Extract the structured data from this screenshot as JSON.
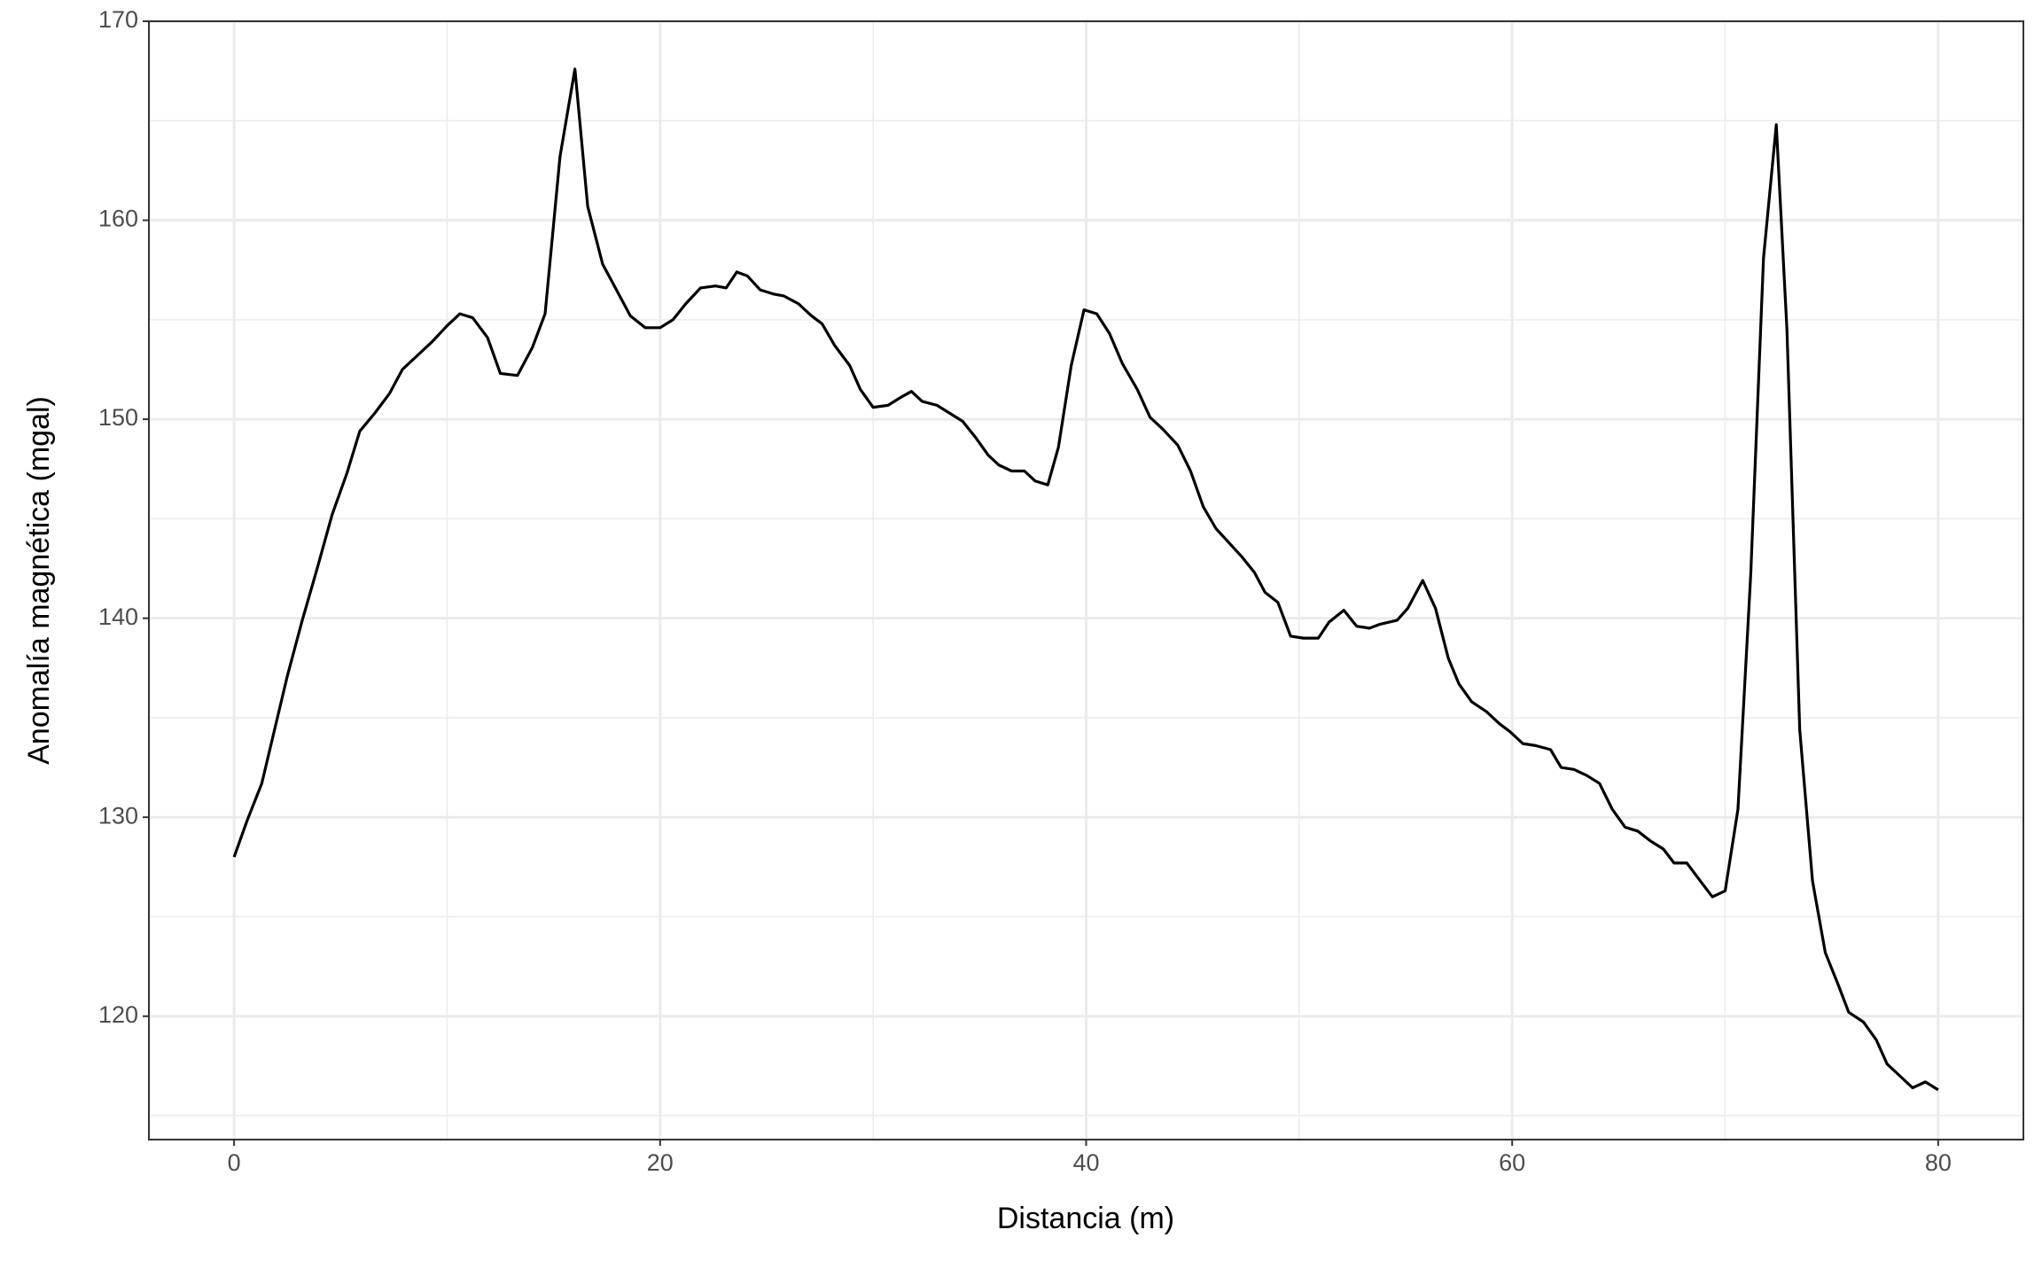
{
  "chart_data": {
    "type": "line",
    "x_label": "Distancia (m)",
    "y_label": "Anomalía magnética (mgal)",
    "x": [
      0,
      0.6,
      1.3,
      1.9,
      2.5,
      3.2,
      3.9,
      4.6,
      5.3,
      5.9,
      6.6,
      7.3,
      7.9,
      8.6,
      9.3,
      10.0,
      10.6,
      11.2,
      11.9,
      12.5,
      13.3,
      14.0,
      14.6,
      15.3,
      16.0,
      16.6,
      17.3,
      17.9,
      18.6,
      19.3,
      20.0,
      20.6,
      21.2,
      21.9,
      22.6,
      23.1,
      23.6,
      24.1,
      24.7,
      25.3,
      25.8,
      26.5,
      27.1,
      27.6,
      28.2,
      28.9,
      29.4,
      30.0,
      30.7,
      31.3,
      31.8,
      32.3,
      33.0,
      33.6,
      34.2,
      34.8,
      35.4,
      35.9,
      36.5,
      37.1,
      37.6,
      38.2,
      38.7,
      39.3,
      39.9,
      40.5,
      41.1,
      41.7,
      42.4,
      43.0,
      43.6,
      44.3,
      44.9,
      45.5,
      46.1,
      46.7,
      47.3,
      47.9,
      48.4,
      49.0,
      49.6,
      50.2,
      50.9,
      51.4,
      52.1,
      52.7,
      53.3,
      53.8,
      54.6,
      55.1,
      55.8,
      56.4,
      57.0,
      57.5,
      58.1,
      58.8,
      59.4,
      59.9,
      60.5,
      61.1,
      61.8,
      62.3,
      62.9,
      63.5,
      64.1,
      64.7,
      65.3,
      65.9,
      66.5,
      67.1,
      67.6,
      68.2,
      68.9,
      69.4,
      70.0,
      70.6,
      71.2,
      71.8,
      72.4,
      72.9,
      73.5,
      74.1,
      74.7,
      75.3,
      75.8,
      76.5,
      77.1,
      77.6,
      78.2,
      78.8,
      79.4,
      80.0
    ],
    "series": [
      {
        "color": "#000000",
        "values": [
          128.0,
          129.8,
          131.7,
          134.4,
          137.1,
          139.9,
          142.5,
          145.2,
          147.3,
          149.4,
          150.3,
          151.3,
          152.5,
          153.2,
          153.9,
          154.7,
          155.3,
          155.1,
          154.1,
          152.3,
          152.2,
          153.6,
          155.3,
          163.2,
          167.6,
          160.7,
          157.8,
          156.6,
          155.2,
          154.6,
          154.6,
          155.0,
          155.8,
          156.6,
          156.7,
          156.6,
          157.4,
          157.2,
          156.5,
          156.3,
          156.2,
          155.8,
          155.2,
          154.8,
          153.7,
          152.7,
          151.5,
          150.6,
          150.7,
          151.1,
          151.4,
          150.9,
          150.7,
          150.3,
          149.9,
          149.1,
          148.2,
          147.7,
          147.4,
          147.4,
          146.9,
          146.7,
          148.6,
          152.7,
          155.5,
          155.3,
          154.3,
          152.8,
          151.5,
          150.1,
          149.5,
          148.7,
          147.4,
          145.6,
          144.5,
          143.8,
          143.1,
          142.3,
          141.3,
          140.8,
          139.1,
          139.0,
          139.0,
          139.8,
          140.4,
          139.6,
          139.5,
          139.7,
          139.9,
          140.5,
          141.9,
          140.5,
          138.0,
          136.7,
          135.8,
          135.3,
          134.7,
          134.3,
          133.7,
          133.6,
          133.4,
          132.5,
          132.4,
          132.1,
          131.7,
          130.4,
          129.5,
          129.3,
          128.8,
          128.4,
          127.7,
          127.7,
          126.7,
          126.0,
          126.3,
          130.4,
          142.2,
          158.1,
          164.8,
          154.5,
          134.4,
          126.8,
          123.2,
          121.6,
          120.2,
          119.7,
          118.8,
          117.6,
          117.0,
          116.4,
          116.7,
          116.3
        ]
      }
    ],
    "xlim": [
      -4,
      84
    ],
    "xticks": [
      0,
      20,
      40,
      60,
      80
    ],
    "ylim": [
      113.8,
      170
    ],
    "yticks": [
      120,
      130,
      140,
      150,
      160,
      170
    ],
    "grid": true
  }
}
